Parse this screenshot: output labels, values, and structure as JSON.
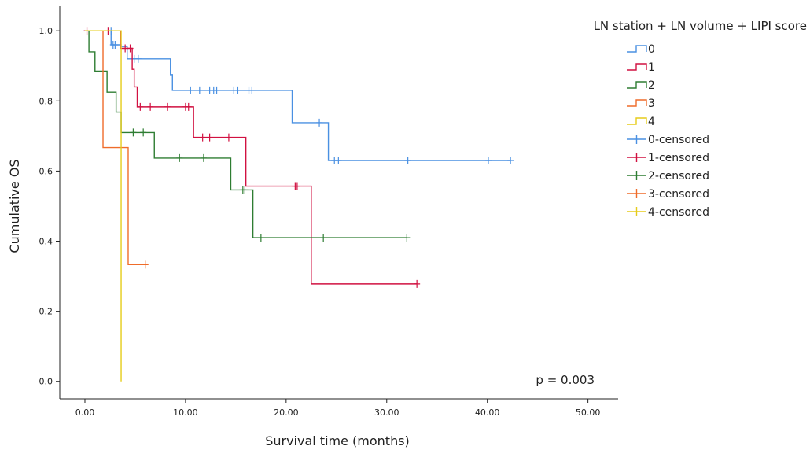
{
  "chart_data": {
    "type": "line",
    "subtype": "kaplan-meier",
    "xlabel": "Survival time (months)",
    "ylabel": "Cumulative OS",
    "xlim": [
      -2.5,
      53
    ],
    "ylim": [
      -0.05,
      1.07
    ],
    "x_ticks": [
      0,
      10,
      20,
      30,
      40,
      50
    ],
    "x_tick_labels": [
      "0.00",
      "10.00",
      "20.00",
      "30.00",
      "40.00",
      "50.00"
    ],
    "y_ticks": [
      0,
      0.2,
      0.4,
      0.6,
      0.8,
      1.0
    ],
    "y_tick_labels": [
      "0.0",
      "0.2",
      "0.4",
      "0.6",
      "0.8",
      "1.0"
    ],
    "legend_title": "LN station + LN volume + LIPI score",
    "legend_placement": "top-right",
    "legend_entries": [
      "0",
      "1",
      "2",
      "3",
      "4",
      "0-censored",
      "1-censored",
      "2-censored",
      "3-censored",
      "4-censored"
    ],
    "annotation": "p = 0.003",
    "series": [
      {
        "name": "0",
        "color": "#4a90e2",
        "steps": [
          [
            0,
            1.0
          ],
          [
            2.6,
            0.96
          ],
          [
            3.6,
            0.955
          ],
          [
            4.2,
            0.92
          ],
          [
            8.5,
            0.875
          ],
          [
            8.7,
            0.83
          ],
          [
            20.6,
            0.738
          ],
          [
            24.2,
            0.63
          ],
          [
            42.3,
            0.63
          ]
        ],
        "censored": [
          [
            2.6,
            1.0
          ],
          [
            2.8,
            0.96
          ],
          [
            3.0,
            0.96
          ],
          [
            4.9,
            0.92
          ],
          [
            5.3,
            0.92
          ],
          [
            10.5,
            0.83
          ],
          [
            11.4,
            0.83
          ],
          [
            12.4,
            0.83
          ],
          [
            12.8,
            0.83
          ],
          [
            13.1,
            0.83
          ],
          [
            14.8,
            0.83
          ],
          [
            15.2,
            0.83
          ],
          [
            16.3,
            0.83
          ],
          [
            16.6,
            0.83
          ],
          [
            23.3,
            0.738
          ],
          [
            24.8,
            0.63
          ],
          [
            25.2,
            0.63
          ],
          [
            32.1,
            0.63
          ],
          [
            40.1,
            0.63
          ],
          [
            42.3,
            0.63
          ]
        ]
      },
      {
        "name": "1",
        "color": "#d11141",
        "steps": [
          [
            0,
            1.0
          ],
          [
            3.5,
            0.95
          ],
          [
            4.7,
            0.89
          ],
          [
            4.9,
            0.84
          ],
          [
            5.2,
            0.783
          ],
          [
            10.8,
            0.696
          ],
          [
            16.0,
            0.557
          ],
          [
            22.5,
            0.278
          ],
          [
            33.0,
            0.278
          ]
        ],
        "censored": [
          [
            0.2,
            1.0
          ],
          [
            2.3,
            1.0
          ],
          [
            4.0,
            0.95
          ],
          [
            4.5,
            0.95
          ],
          [
            5.5,
            0.783
          ],
          [
            6.5,
            0.783
          ],
          [
            8.2,
            0.783
          ],
          [
            10.0,
            0.783
          ],
          [
            10.3,
            0.783
          ],
          [
            11.7,
            0.696
          ],
          [
            12.4,
            0.696
          ],
          [
            14.3,
            0.696
          ],
          [
            20.9,
            0.557
          ],
          [
            21.1,
            0.557
          ],
          [
            33.0,
            0.278
          ]
        ]
      },
      {
        "name": "2",
        "color": "#2e7d32",
        "steps": [
          [
            0,
            1.0
          ],
          [
            0.4,
            0.94
          ],
          [
            1.0,
            0.885
          ],
          [
            2.2,
            0.825
          ],
          [
            3.1,
            0.768
          ],
          [
            3.6,
            0.71
          ],
          [
            6.9,
            0.637
          ],
          [
            14.5,
            0.546
          ],
          [
            16.7,
            0.41
          ],
          [
            32.0,
            0.41
          ]
        ],
        "censored": [
          [
            4.8,
            0.71
          ],
          [
            5.8,
            0.71
          ],
          [
            9.4,
            0.637
          ],
          [
            11.8,
            0.637
          ],
          [
            15.7,
            0.546
          ],
          [
            15.9,
            0.546
          ],
          [
            17.5,
            0.41
          ],
          [
            23.7,
            0.41
          ],
          [
            32.0,
            0.41
          ]
        ]
      },
      {
        "name": "3",
        "color": "#ef6c2a",
        "steps": [
          [
            0,
            1.0
          ],
          [
            1.8,
            0.667
          ],
          [
            4.3,
            0.333
          ],
          [
            6.0,
            0.333
          ]
        ],
        "censored": [
          [
            6.0,
            0.333
          ]
        ]
      },
      {
        "name": "4",
        "color": "#e6cc1a",
        "steps": [
          [
            0,
            1.0
          ],
          [
            3.6,
            1.0
          ],
          [
            3.6,
            0.0
          ]
        ],
        "censored": []
      }
    ]
  }
}
